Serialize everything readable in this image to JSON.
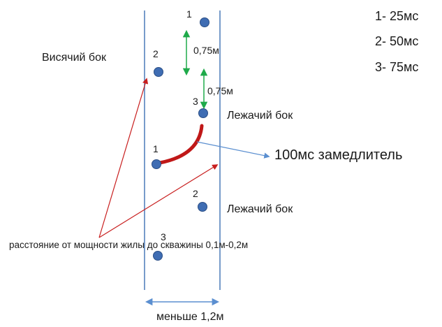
{
  "legend": [
    "1- 25мс",
    "2- 50мс",
    "3- 75мс"
  ],
  "labels": {
    "hanging_side": "Висячий бок",
    "lying_side_upper": "Лежачий бок",
    "lying_side_lower": "Лежачий бок",
    "retarder": "100мс замедлитель",
    "spacing_upper": "0,75м",
    "spacing_lower": "0,75м",
    "distance_note": "расстояние от мощности жилы до скважины 0,1м-0,2м",
    "width_note": "меньше 1,2м"
  },
  "holes": [
    {
      "number": "1"
    },
    {
      "number": "2"
    },
    {
      "number": "3"
    },
    {
      "number": "1"
    },
    {
      "number": "2"
    },
    {
      "number": "3"
    }
  ],
  "colors": {
    "vein_lines": "#4a7ab8",
    "holes": "#3f6db3",
    "hole_stroke": "#2b4f86",
    "green_arrows": "#1faa4a",
    "red_arrows": "#c81e1e",
    "connector": "#c01818",
    "blue_arrow": "#5b8fd0"
  }
}
